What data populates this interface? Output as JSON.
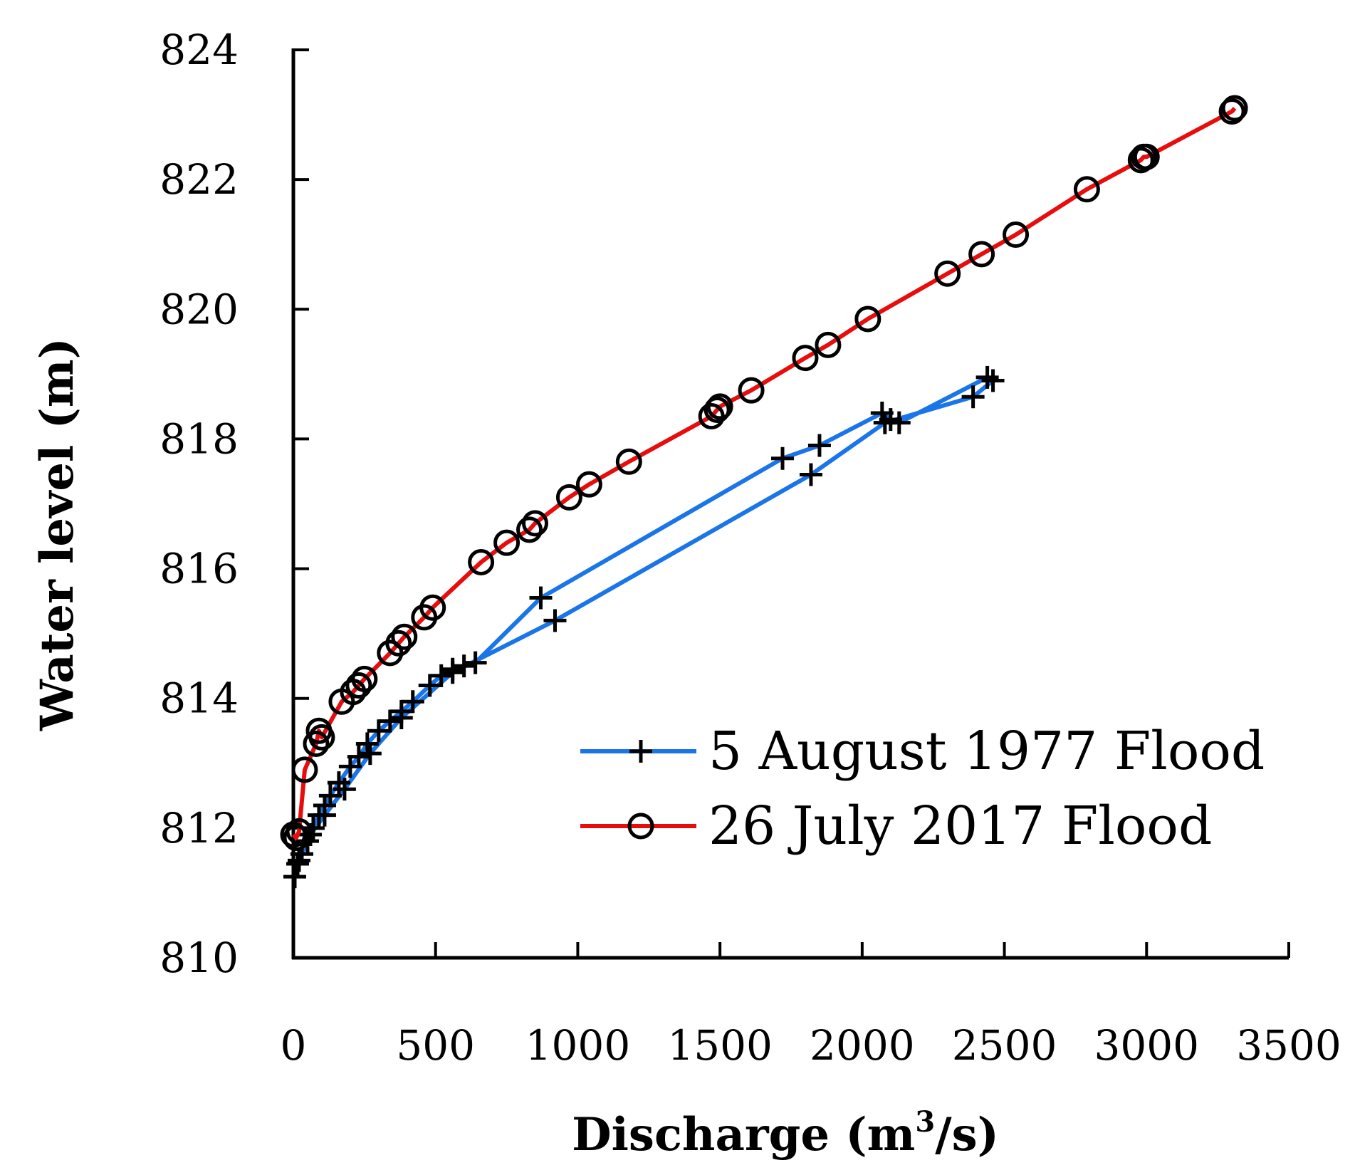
{
  "chart_data": {
    "type": "line",
    "title": "",
    "xlabel": "Discharge (m3/s)",
    "xlabel_parts": {
      "prefix": "Discharge (m",
      "superscript": "3",
      "suffix": "/s)"
    },
    "ylabel": "Water level (m)",
    "xlim": [
      0,
      3500
    ],
    "ylim": [
      810,
      824
    ],
    "x_ticks": [
      0,
      500,
      1000,
      1500,
      2000,
      2500,
      3000,
      3500
    ],
    "x_tick_labels": [
      "0",
      "500",
      "1000",
      "1500",
      "2000",
      "2500",
      "3000",
      "3500"
    ],
    "y_ticks": [
      810,
      812,
      814,
      816,
      818,
      820,
      822,
      824
    ],
    "y_tick_labels": [
      "810",
      "812",
      "814",
      "816",
      "818",
      "820",
      "822",
      "824"
    ],
    "grid": false,
    "legend_position": "lower-right",
    "series": [
      {
        "name": "5 August 1977 Flood",
        "color": "#1a75e8",
        "marker": "plus",
        "x": [
          5,
          15,
          30,
          50,
          70,
          90,
          110,
          130,
          160,
          200,
          230,
          260,
          300,
          340,
          380,
          420,
          480,
          520,
          560,
          600,
          640,
          870,
          1720,
          1850,
          2070,
          2100,
          2130,
          2440,
          2460,
          2390,
          2080,
          1820,
          920,
          560,
          380,
          270,
          180,
          110,
          60,
          20
        ],
        "y": [
          811.25,
          811.45,
          811.6,
          811.8,
          812.0,
          812.2,
          812.35,
          812.5,
          812.7,
          812.95,
          813.1,
          813.3,
          813.5,
          813.65,
          813.8,
          813.95,
          814.2,
          814.35,
          814.45,
          814.5,
          814.55,
          815.55,
          817.7,
          817.9,
          818.4,
          818.3,
          818.25,
          818.95,
          818.9,
          818.65,
          818.25,
          817.45,
          815.2,
          814.4,
          813.7,
          813.15,
          812.6,
          812.2,
          811.9,
          811.5
        ]
      },
      {
        "name": "26 July 2017 Flood",
        "color": "#e80d0d",
        "marker": "circle",
        "x": [
          0,
          10,
          20,
          40,
          80,
          90,
          100,
          170,
          210,
          230,
          250,
          340,
          370,
          390,
          460,
          490,
          660,
          750,
          830,
          850,
          970,
          1040,
          1180,
          1470,
          1490,
          1500,
          1610,
          1800,
          1880,
          2020,
          2300,
          2420,
          2540,
          2790,
          2980,
          2990,
          3000,
          3300,
          3310
        ],
        "y": [
          811.9,
          811.85,
          811.95,
          812.9,
          813.3,
          813.5,
          813.4,
          813.95,
          814.1,
          814.2,
          814.3,
          814.7,
          814.85,
          814.95,
          815.25,
          815.4,
          816.1,
          816.4,
          816.6,
          816.7,
          817.1,
          817.3,
          817.65,
          818.35,
          818.45,
          818.5,
          818.75,
          819.25,
          819.45,
          819.85,
          820.55,
          820.85,
          821.15,
          821.85,
          822.3,
          822.35,
          822.35,
          823.05,
          823.1
        ]
      }
    ]
  }
}
